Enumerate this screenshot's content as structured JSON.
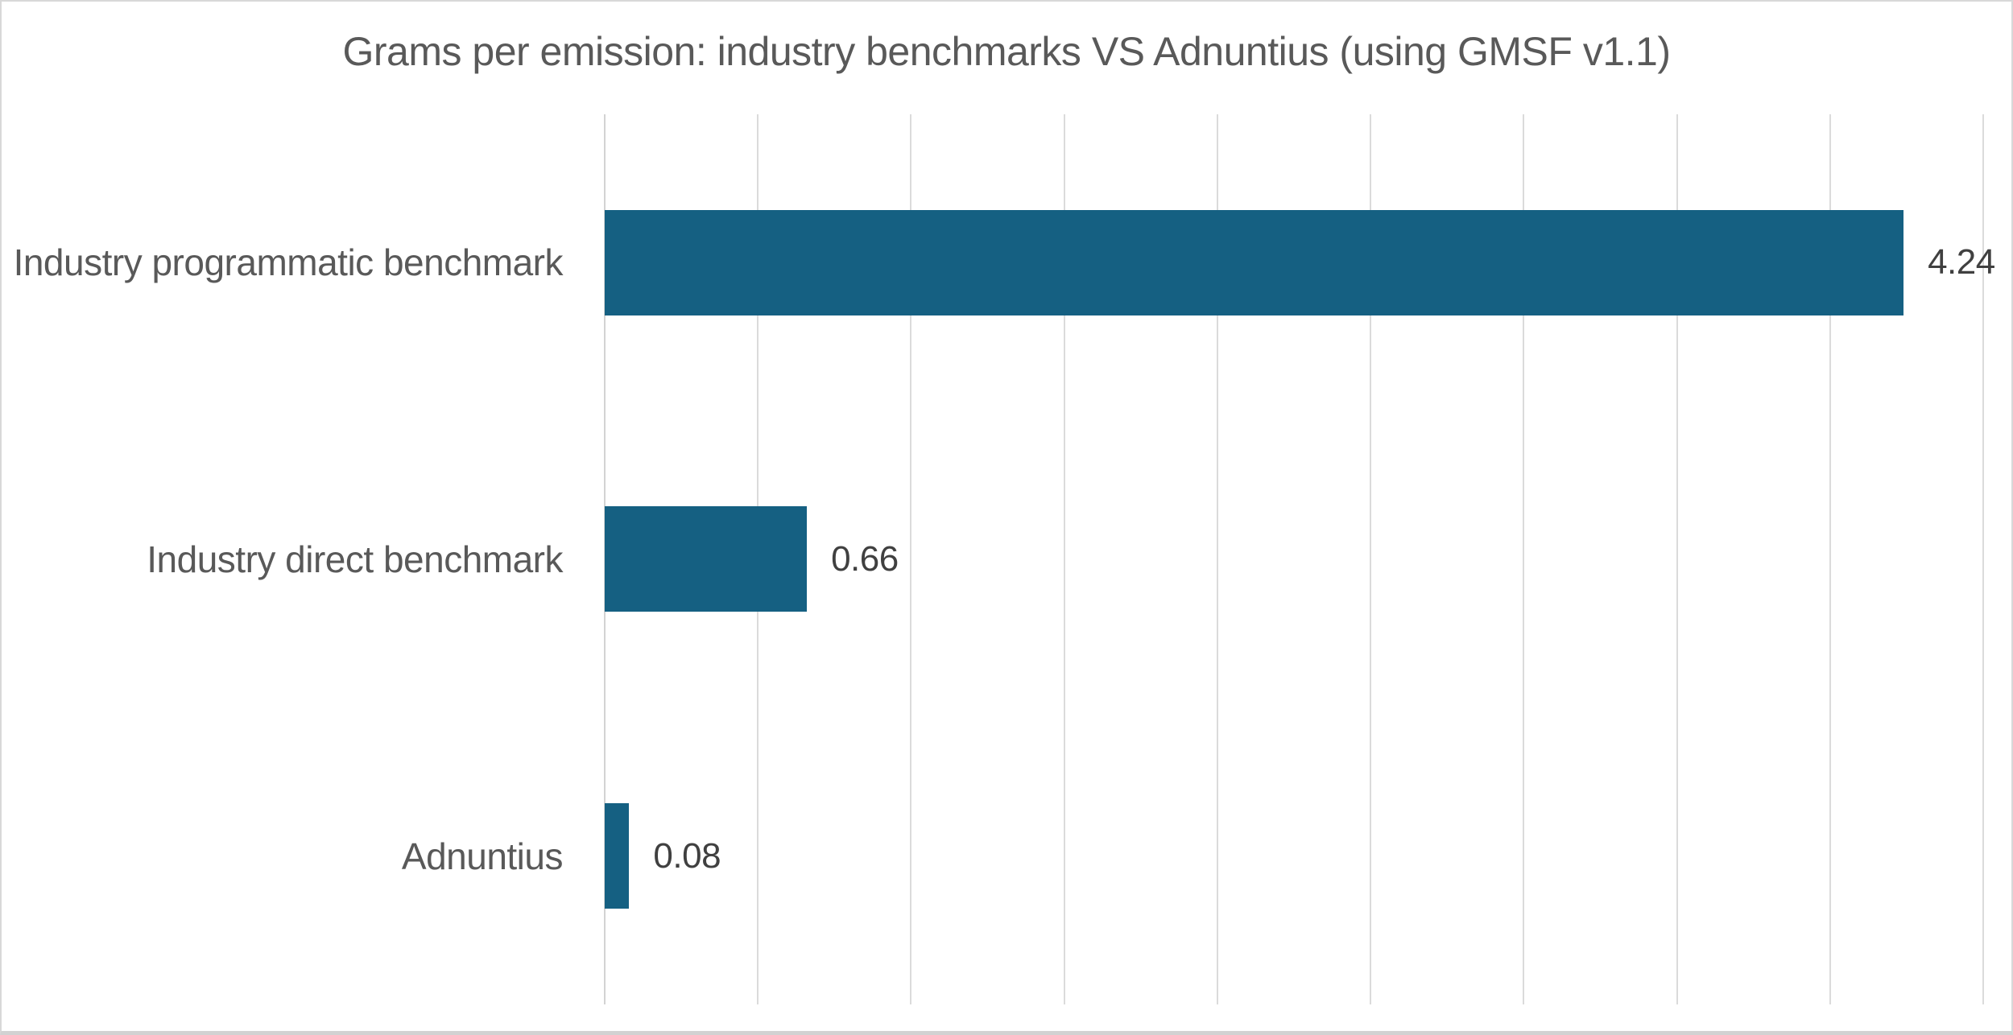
{
  "chart_data": {
    "type": "bar",
    "orientation": "horizontal",
    "title": "Grams per emission: industry benchmarks VS Adnuntius (using GMSF v1.1)",
    "categories": [
      "Industry programmatic benchmark",
      "Industry direct benchmark",
      "Adnuntius"
    ],
    "values": [
      4.24,
      0.66,
      0.08
    ],
    "data_labels": [
      "4.24",
      "0.66",
      "0.08"
    ],
    "xlim": [
      0,
      4.5
    ],
    "gridline_step": 0.5,
    "grid": true,
    "x_tick_labels_visible": false,
    "y_axis_tick_labels_visible": true,
    "legend": "none",
    "colors": {
      "bar": "#156082",
      "gridline": "#dbdbdb",
      "axis_line": "#d3d3d3",
      "title_text": "#595959",
      "category_text": "#595959",
      "value_text": "#404040",
      "background": "#ffffff",
      "border": "#d8d8d8",
      "border_bottom": "#d2d2d2"
    }
  }
}
